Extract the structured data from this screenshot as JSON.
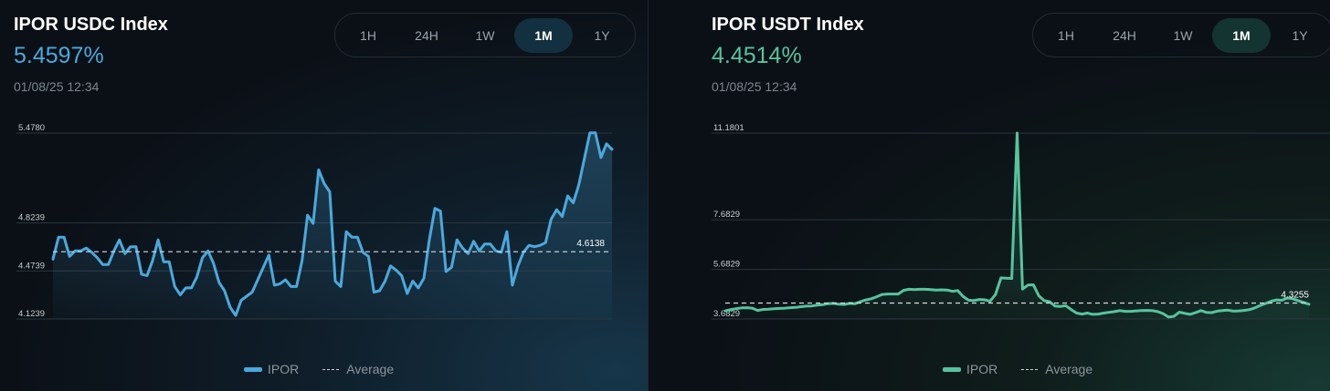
{
  "left": {
    "title": "IPOR USDC Index",
    "value": "5.4597%",
    "timestamp": "01/08/25 12:34",
    "tabs": [
      "1H",
      "24H",
      "1W",
      "1M",
      "1Y"
    ],
    "active_tab": "1M",
    "accent": "#4aa9dd",
    "legend": {
      "series": "IPOR",
      "average": "Average"
    }
  },
  "right": {
    "title": "IPOR USDT Index",
    "value": "4.4514%",
    "timestamp": "01/08/25 12:34",
    "tabs": [
      "1H",
      "24H",
      "1W",
      "1M",
      "1Y"
    ],
    "active_tab": "1M",
    "accent": "#56c49e",
    "legend": {
      "series": "IPOR",
      "average": "Average"
    }
  },
  "chart_data": [
    {
      "type": "area",
      "ticks": [
        4.1239,
        4.4739,
        4.8239,
        5.478
      ],
      "tick_labels": [
        "4.1239",
        "4.4739",
        "4.8239",
        "5.4780"
      ],
      "ylim": [
        4.1239,
        5.478
      ],
      "average": 4.6138,
      "average_label": "4.6138",
      "grid": true,
      "legend_position": "bottom-center",
      "series": [
        {
          "name": "IPOR",
          "values": [
            4.56,
            4.72,
            4.72,
            4.58,
            4.62,
            4.62,
            4.64,
            4.61,
            4.57,
            4.52,
            4.52,
            4.62,
            4.7,
            4.6,
            4.65,
            4.65,
            4.45,
            4.44,
            4.55,
            4.7,
            4.54,
            4.54,
            4.36,
            4.3,
            4.35,
            4.35,
            4.43,
            4.57,
            4.62,
            4.53,
            4.39,
            4.33,
            4.21,
            4.15,
            4.26,
            4.29,
            4.32,
            4.41,
            4.5,
            4.59,
            4.37,
            4.38,
            4.41,
            4.36,
            4.36,
            4.55,
            4.88,
            4.82,
            5.21,
            5.11,
            5.05,
            4.4,
            4.36,
            4.76,
            4.72,
            4.72,
            4.61,
            4.58,
            4.32,
            4.33,
            4.4,
            4.51,
            4.48,
            4.44,
            4.31,
            4.4,
            4.35,
            4.42,
            4.7,
            4.93,
            4.91,
            4.47,
            4.5,
            4.7,
            4.64,
            4.6,
            4.69,
            4.62,
            4.67,
            4.67,
            4.62,
            4.61,
            4.76,
            4.37,
            4.51,
            4.61,
            4.66,
            4.65,
            4.66,
            4.68,
            4.85,
            4.92,
            4.87,
            5.02,
            4.97,
            5.1,
            5.29,
            5.48,
            5.48,
            5.3,
            5.4,
            5.36
          ]
        }
      ]
    },
    {
      "type": "area",
      "ticks": [
        3.6829,
        5.6829,
        7.6829,
        11.1801
      ],
      "tick_labels": [
        "3.6829",
        "5.6829",
        "7.6829",
        "11.1801"
      ],
      "ylim": [
        3.6829,
        11.1801
      ],
      "average": 4.3255,
      "average_label": "4.3255",
      "grid": true,
      "legend_position": "bottom-center",
      "series": [
        {
          "name": "IPOR",
          "values": [
            4.01,
            4.06,
            4.1,
            4.13,
            4.14,
            4.12,
            4.03,
            4.07,
            4.08,
            4.1,
            4.11,
            4.12,
            4.14,
            4.15,
            4.18,
            4.2,
            4.21,
            4.24,
            4.26,
            4.3,
            4.31,
            4.28,
            4.27,
            4.31,
            4.3,
            4.38,
            4.45,
            4.5,
            4.58,
            4.67,
            4.69,
            4.69,
            4.69,
            4.84,
            4.88,
            4.87,
            4.88,
            4.88,
            4.87,
            4.85,
            4.86,
            4.85,
            4.8,
            4.83,
            4.59,
            4.44,
            4.43,
            4.47,
            4.46,
            4.4,
            4.67,
            5.34,
            5.33,
            5.32,
            11.1801,
            4.89,
            5.05,
            5.06,
            4.62,
            4.42,
            4.38,
            4.21,
            4.19,
            4.22,
            4.06,
            3.92,
            3.88,
            3.92,
            3.87,
            3.88,
            3.92,
            3.95,
            3.98,
            4.02,
            3.99,
            3.99,
            4.01,
            4.02,
            4.03,
            4.02,
            3.98,
            3.9,
            3.76,
            3.79,
            3.96,
            3.91,
            3.87,
            3.94,
            4.02,
            3.95,
            3.94,
            4.0,
            4.02,
            4.04,
            4.0,
            4.01,
            4.03,
            4.06,
            4.13,
            4.23,
            4.31,
            4.4,
            4.45,
            4.44,
            4.53,
            4.5,
            4.42,
            4.35,
            4.28
          ]
        }
      ]
    }
  ]
}
